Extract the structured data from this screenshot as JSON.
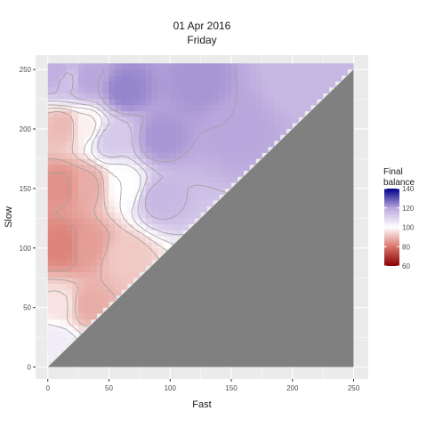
{
  "title": "01 Apr 2016",
  "subtitle": "Friday",
  "chart_data": {
    "type": "heatmap",
    "title": "01 Apr 2016",
    "subtitle": "Friday",
    "xlabel": "Fast",
    "ylabel": "Slow",
    "xlim": [
      -10,
      262
    ],
    "ylim": [
      -10,
      262
    ],
    "x_ticks": [
      0,
      50,
      100,
      150,
      200,
      250
    ],
    "y_ticks": [
      0,
      50,
      100,
      150,
      200,
      250
    ],
    "fill_variable": "Final balance",
    "fill_range": [
      60,
      140
    ],
    "legend_ticks": [
      60,
      80,
      100,
      120,
      140
    ],
    "legend_title_lines": [
      "Final",
      "balance"
    ],
    "legend_position": "right",
    "colors": {
      "low": "#8b0000",
      "mid": "#ffffff",
      "high": "#00008b",
      "undefined_region": "#808080",
      "panel_background": "#ebebeb",
      "contour": "#a0a0a0"
    },
    "grid": true,
    "region_note": "cells where Fast >= Slow are undefined (grey)",
    "surface_samples": [
      {
        "fast": 5,
        "slow": 245,
        "value": 118
      },
      {
        "fast": 15,
        "slow": 240,
        "value": 114
      },
      {
        "fast": 30,
        "slow": 240,
        "value": 120
      },
      {
        "fast": 60,
        "slow": 230,
        "value": 124
      },
      {
        "fast": 120,
        "slow": 235,
        "value": 122
      },
      {
        "fast": 200,
        "slow": 240,
        "value": 116
      },
      {
        "fast": 10,
        "slow": 200,
        "value": 90
      },
      {
        "fast": 30,
        "slow": 200,
        "value": 98
      },
      {
        "fast": 50,
        "slow": 190,
        "value": 112
      },
      {
        "fast": 90,
        "slow": 190,
        "value": 122
      },
      {
        "fast": 150,
        "slow": 200,
        "value": 120
      },
      {
        "fast": 10,
        "slow": 150,
        "value": 84
      },
      {
        "fast": 30,
        "slow": 150,
        "value": 88
      },
      {
        "fast": 60,
        "slow": 150,
        "value": 100
      },
      {
        "fast": 90,
        "slow": 140,
        "value": 116
      },
      {
        "fast": 10,
        "slow": 100,
        "value": 82
      },
      {
        "fast": 30,
        "slow": 100,
        "value": 86
      },
      {
        "fast": 60,
        "slow": 90,
        "value": 92
      },
      {
        "fast": 10,
        "slow": 50,
        "value": 96
      },
      {
        "fast": 30,
        "slow": 50,
        "value": 88
      },
      {
        "fast": 5,
        "slow": 20,
        "value": 104
      }
    ]
  }
}
